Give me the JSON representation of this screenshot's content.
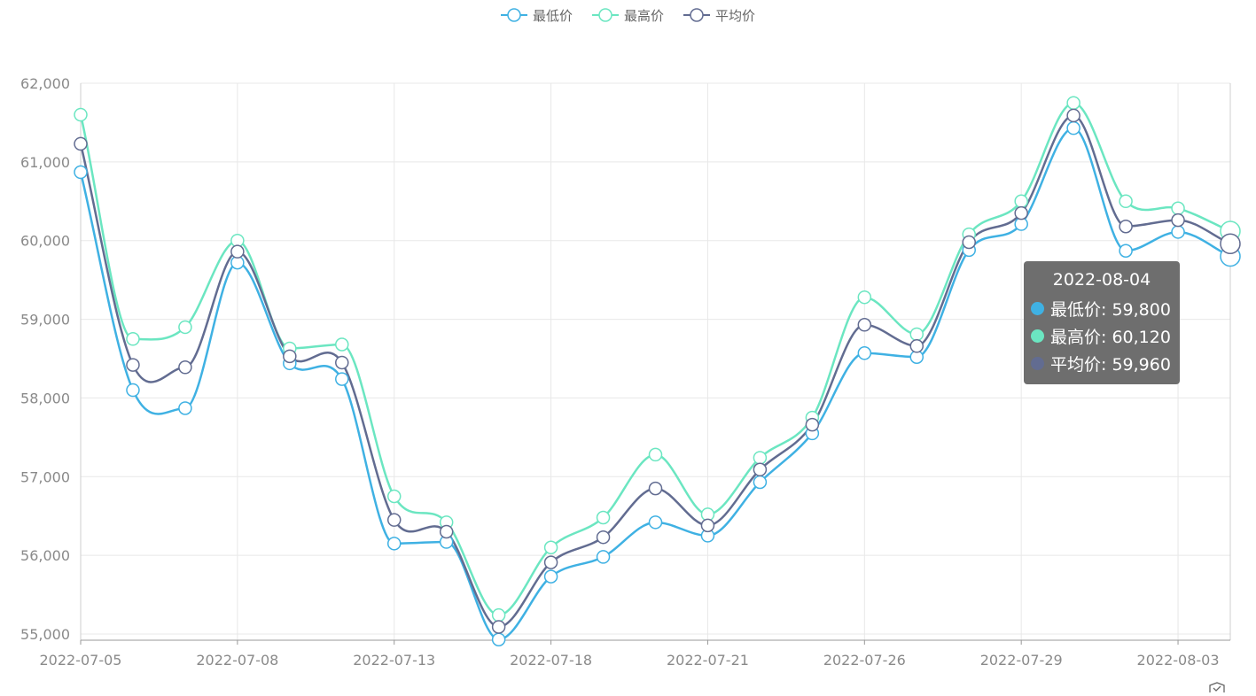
{
  "chart_data": {
    "type": "line",
    "smooth": true,
    "x": [
      "2022-07-05",
      "2022-07-06",
      "2022-07-07",
      "2022-07-08",
      "2022-07-11",
      "2022-07-12",
      "2022-07-13",
      "2022-07-14",
      "2022-07-15",
      "2022-07-18",
      "2022-07-19",
      "2022-07-20",
      "2022-07-21",
      "2022-07-22",
      "2022-07-25",
      "2022-07-26",
      "2022-07-27",
      "2022-07-28",
      "2022-07-29",
      "2022-08-01",
      "2022-08-02",
      "2022-08-03",
      "2022-08-04"
    ],
    "x_tick_labels": [
      "2022-07-05",
      "2022-07-08",
      "2022-07-13",
      "2022-07-18",
      "2022-07-21",
      "2022-07-26",
      "2022-07-29",
      "2022-08-03"
    ],
    "y_tick_labels": [
      "55,000",
      "56,000",
      "57,000",
      "58,000",
      "59,000",
      "60,000",
      "61,000",
      "62,000"
    ],
    "ylim": [
      55000,
      62000
    ],
    "grid": true,
    "legend_position": "top-center",
    "series": [
      {
        "name": "最低价",
        "color": "#3fb1e3",
        "values": [
          60870,
          58100,
          57870,
          59720,
          58440,
          58240,
          56150,
          56170,
          54930,
          55730,
          55980,
          56420,
          56250,
          56930,
          57550,
          58570,
          58520,
          59880,
          60210,
          61430,
          59870,
          60110,
          59800
        ]
      },
      {
        "name": "最高价",
        "color": "#6be6c1",
        "values": [
          61600,
          58750,
          58900,
          60000,
          58630,
          58680,
          56750,
          56420,
          55240,
          56100,
          56480,
          57280,
          56520,
          57240,
          57750,
          59280,
          58810,
          60080,
          60500,
          61750,
          60500,
          60410,
          60120
        ]
      },
      {
        "name": "平均价",
        "color": "#626c91",
        "values": [
          61230,
          58420,
          58390,
          59860,
          58530,
          58450,
          56450,
          56300,
          55090,
          55910,
          56230,
          56850,
          56380,
          57090,
          57660,
          58930,
          58660,
          59980,
          60350,
          61590,
          60180,
          60260,
          59960
        ]
      }
    ]
  },
  "tooltip": {
    "title": "2022-08-04",
    "rows": [
      {
        "label": "最低价: 59,800",
        "color": "#3fb1e3"
      },
      {
        "label": "最高价: 60,120",
        "color": "#6be6c1"
      },
      {
        "label": "平均价: 59,960",
        "color": "#626c91"
      }
    ]
  }
}
